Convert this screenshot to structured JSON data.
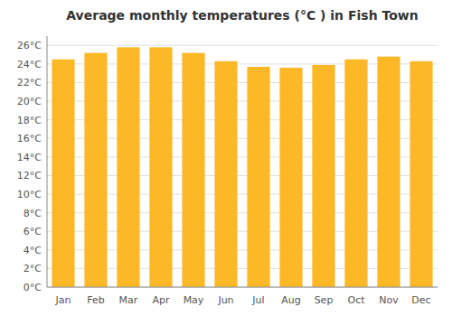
{
  "chart_data": {
    "type": "bar",
    "title": "Average monthly temperatures (°C ) in Fish Town",
    "categories": [
      "Jan",
      "Feb",
      "Mar",
      "Apr",
      "May",
      "Jun",
      "Jul",
      "Aug",
      "Sep",
      "Oct",
      "Nov",
      "Dec"
    ],
    "values": [
      24.5,
      25.2,
      25.8,
      25.8,
      25.2,
      24.3,
      23.7,
      23.6,
      23.9,
      24.5,
      24.8,
      24.3
    ],
    "color": "#FDB827",
    "ylim": [
      0,
      27
    ],
    "yticks": [
      {
        "value": 0,
        "label": "0°C"
      },
      {
        "value": 2,
        "label": "2°C"
      },
      {
        "value": 4,
        "label": "4°C"
      },
      {
        "value": 6,
        "label": "6°C"
      },
      {
        "value": 8,
        "label": "8°C"
      },
      {
        "value": 10,
        "label": "10°C"
      },
      {
        "value": 12,
        "label": "12°C"
      },
      {
        "value": 14,
        "label": "14°C"
      },
      {
        "value": 16,
        "label": "16°C"
      },
      {
        "value": 18,
        "label": "18°C"
      },
      {
        "value": 20,
        "label": "20°C"
      },
      {
        "value": 22,
        "label": "22°C"
      },
      {
        "value": 24,
        "label": "24°C"
      },
      {
        "value": 26,
        "label": "26°C"
      }
    ],
    "grid": true
  }
}
